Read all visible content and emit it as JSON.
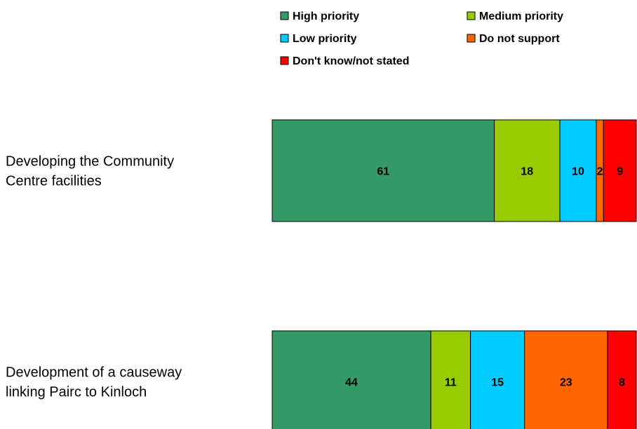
{
  "chart_data": {
    "type": "bar",
    "orientation": "horizontal",
    "stacked": true,
    "percent_stacked": true,
    "legend_position": "top",
    "grid": false,
    "title": "",
    "xlabel": "",
    "ylabel": "",
    "categories": [
      [
        "Developing the Community",
        "Centre facilities"
      ],
      [
        "Development of a causeway",
        "linking Pairc to Kinloch"
      ]
    ],
    "series": [
      {
        "name": "High priority",
        "color": "#339966",
        "values": [
          61,
          44
        ]
      },
      {
        "name": "Medium priority",
        "color": "#99CC00",
        "values": [
          18,
          11
        ]
      },
      {
        "name": "Low priority",
        "color": "#00CCFF",
        "values": [
          10,
          15
        ]
      },
      {
        "name": "Do not support",
        "color": "#FF6600",
        "values": [
          2,
          23
        ]
      },
      {
        "name": "Don't know/not stated",
        "color": "#FF0000",
        "values": [
          9,
          8
        ]
      }
    ]
  }
}
